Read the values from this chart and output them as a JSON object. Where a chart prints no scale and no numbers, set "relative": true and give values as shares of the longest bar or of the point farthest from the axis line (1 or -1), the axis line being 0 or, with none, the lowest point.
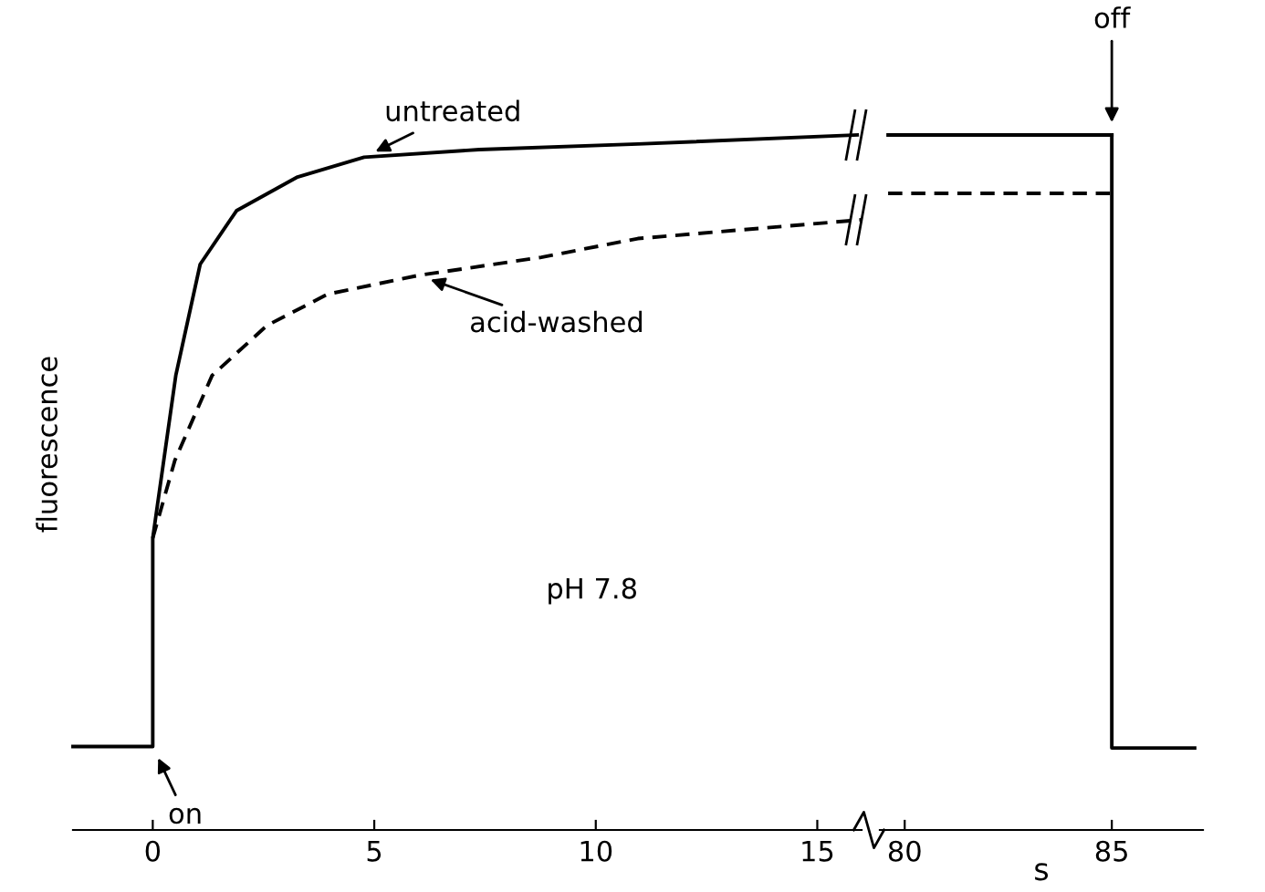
{
  "chart_data": [
    {
      "type": "line",
      "relative": true,
      "ylabel": "fluorescence",
      "xlim": [
        -1.8,
        16.0
      ],
      "xticks": [
        0,
        5,
        10,
        15
      ],
      "tick_labels": "x",
      "series": [
        {
          "color": "#000000",
          "line_style": "solid",
          "x": [
            -1.8,
            0,
            0,
            0.52,
            1.07,
            1.89,
            3.25,
            4.77,
            7.37,
            10.95,
            15.9
          ],
          "values": [
            0.12,
            0.12,
            0.42,
            0.654,
            0.814,
            0.891,
            0.939,
            0.968,
            0.979,
            0.987,
            1.0
          ]
        },
        {
          "color": "#000000",
          "line_style": "dashed",
          "x": [
            0,
            0.5,
            1.34,
            2.58,
            3.95,
            6.0,
            8.77,
            10.95,
            16.0
          ],
          "values": [
            0.42,
            0.532,
            0.654,
            0.726,
            0.771,
            0.798,
            0.824,
            0.851,
            0.878
          ]
        }
      ],
      "annotations": [
        {
          "text": "untreated",
          "x": 4.77,
          "y": 0.968
        },
        {
          "text": "acid-washed",
          "x": 6.0,
          "y": 0.798
        },
        {
          "text": "on",
          "x": 0,
          "y": 0.12
        },
        "pH 7.8"
      ]
    },
    {
      "type": "line",
      "relative": true,
      "xlim": [
        79.4,
        87.2
      ],
      "xticks": [
        80,
        85
      ],
      "xlabel": "s",
      "tick_labels": "x",
      "series": [
        {
          "color": "#000000",
          "line_style": "solid",
          "x": [
            79.6,
            85
          ],
          "values": [
            1.0,
            1.0
          ]
        },
        {
          "color": "#000000",
          "line_style": "dashed",
          "x": [
            79.6,
            85
          ],
          "values": [
            0.916,
            0.916
          ]
        },
        {
          "color": "#000000",
          "line_style": "solid",
          "x": [
            85,
            85,
            87.0
          ],
          "values": [
            1.0,
            0.118,
            0.118
          ]
        }
      ],
      "annotations": [
        {
          "text": "off",
          "x": 85,
          "y": 1.0
        }
      ]
    }
  ]
}
